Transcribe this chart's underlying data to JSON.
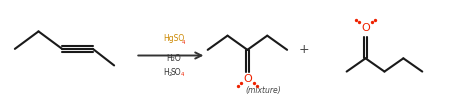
{
  "bg_color": "#ffffff",
  "arrow_color": "#333333",
  "bond_color": "#1a1a1a",
  "hg_color": "#cc8800",
  "o_color": "#ee2200",
  "h2o_color": "#333333",
  "text_color": "#444444",
  "mixture_label": "(mixture)",
  "figsize": [
    4.74,
    1.11
  ],
  "dpi": 100,
  "xlim": [
    0,
    10
  ],
  "ylim": [
    0,
    2.32
  ]
}
